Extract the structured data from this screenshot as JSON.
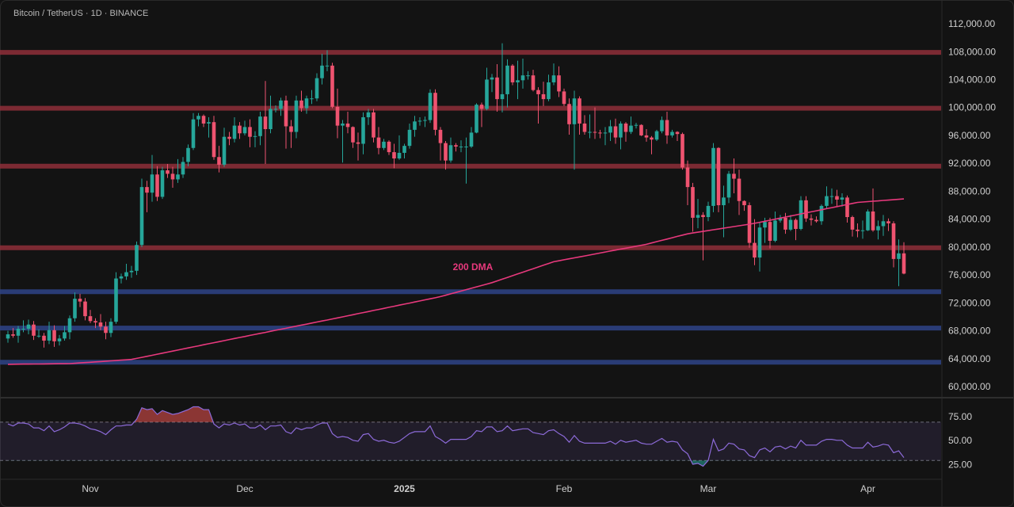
{
  "chart_data": {
    "type": "candlestick",
    "title": "Bitcoin / TetherUS · 1D · BINANCE",
    "categories": [
      null,
      null,
      null,
      null,
      null,
      null,
      null,
      null,
      null,
      null,
      null,
      null,
      null,
      null,
      null,
      null,
      "Nov",
      null,
      null,
      null,
      null,
      null,
      null,
      null,
      null,
      null,
      null,
      null,
      null,
      null,
      null,
      null,
      null,
      null,
      null,
      null,
      null,
      null,
      null,
      null,
      null,
      null,
      null,
      null,
      null,
      null,
      "Dec",
      null,
      null,
      null,
      null,
      null,
      null,
      null,
      null,
      null,
      null,
      null,
      null,
      null,
      null,
      null,
      null,
      null,
      null,
      null,
      null,
      null,
      null,
      null,
      null,
      null,
      null,
      null,
      null,
      null,
      null,
      "2025",
      null,
      null,
      null,
      null,
      null,
      null,
      null,
      null,
      null,
      null,
      null,
      null,
      null,
      null,
      null,
      null,
      null,
      null,
      null,
      null,
      null,
      null,
      null,
      null,
      null,
      null,
      null,
      null,
      null,
      null,
      "Feb",
      null,
      null,
      null,
      null,
      null,
      null,
      null,
      null,
      null,
      null,
      null,
      null,
      null,
      null,
      null,
      null,
      null,
      null,
      null,
      null,
      null,
      null,
      null,
      null,
      null,
      null,
      null,
      "Mar",
      null,
      null,
      null,
      null,
      null,
      null,
      null,
      null,
      null,
      null,
      null,
      null,
      null,
      null,
      null,
      null,
      null,
      null,
      null,
      null,
      null,
      null,
      null,
      null,
      null,
      null,
      null,
      null,
      null,
      null,
      "Apr",
      null,
      null,
      null,
      null,
      null,
      null,
      null
    ],
    "open": [
      67000,
      67600,
      67400,
      68400,
      68400,
      69000,
      67400,
      67400,
      66700,
      68200,
      66600,
      67000,
      67900,
      69900,
      72700,
      72300,
      70200,
      69500,
      69300,
      68700,
      67800,
      69400,
      75600,
      75900,
      76500,
      76700,
      80400,
      88700,
      87900,
      90500,
      87300,
      91100,
      90600,
      89800,
      90500,
      92300,
      94300,
      98400,
      98900,
      97800,
      98000,
      93000,
      91900,
      95900,
      95600,
      97500,
      96400,
      97300,
      95900,
      96000,
      98800,
      97000,
      99900,
      99900,
      101100,
      97400,
      96600,
      101100,
      100000,
      101400,
      101400,
      104300,
      106100,
      106100,
      100200,
      97500,
      97800,
      97300,
      95100,
      94900,
      98700,
      99400,
      95800,
      94300,
      95200,
      93700,
      92800,
      93600,
      94600,
      96900,
      98100,
      98200,
      98300,
      102200,
      96900,
      95000,
      92500,
      94700,
      94500,
      94500,
      94500,
      96500,
      100500,
      99900,
      104100,
      104400,
      101300,
      102000,
      106100,
      103700,
      104000,
      104700,
      104700,
      102600,
      102000,
      101300,
      103700,
      104700,
      102400,
      100600,
      97700,
      101400,
      97800,
      96600,
      96600,
      96500,
      96400,
      96500,
      97400,
      95800,
      97800,
      96600,
      97500,
      97600,
      96100,
      95800,
      95500,
      96700,
      98300,
      96100,
      96600,
      96300,
      91500,
      88700,
      84300,
      84700,
      84400,
      86000,
      94300,
      86100,
      87200,
      90600,
      89900,
      86700,
      86100,
      80700,
      78600,
      82900,
      83700,
      81000,
      83900,
      84300,
      82600,
      84000,
      82700,
      86800,
      84200,
      84000,
      83800,
      86000,
      87400,
      87400,
      86900,
      87200,
      84400,
      82600,
      82400,
      82500,
      85200,
      82500,
      83100,
      83800,
      83500,
      78400,
      79200
    ],
    "high": [
      68100,
      68500,
      68800,
      69600,
      69700,
      69500,
      68300,
      67800,
      69400,
      68900,
      67500,
      68800,
      70300,
      73600,
      73400,
      72800,
      71100,
      69900,
      70500,
      69400,
      69900,
      76500,
      76300,
      77700,
      77400,
      80900,
      89900,
      89600,
      93300,
      91700,
      91600,
      92000,
      91600,
      92700,
      93000,
      94800,
      99300,
      99300,
      99100,
      98700,
      98900,
      94600,
      97200,
      96600,
      98700,
      98000,
      98200,
      98400,
      96700,
      99500,
      103900,
      101800,
      100400,
      101500,
      101800,
      98300,
      101800,
      102500,
      101800,
      102600,
      105000,
      107800,
      108300,
      106500,
      102800,
      98300,
      99500,
      97400,
      96500,
      99400,
      99900,
      99900,
      97300,
      95600,
      95400,
      94900,
      96100,
      94900,
      97800,
      98900,
      98700,
      98800,
      102700,
      102700,
      97300,
      95300,
      95800,
      95000,
      95400,
      95800,
      97300,
      100700,
      100800,
      105800,
      104900,
      106300,
      109300,
      107000,
      106300,
      106800,
      107100,
      105300,
      105500,
      103000,
      103800,
      104800,
      106400,
      106000,
      102800,
      101400,
      102500,
      101700,
      99000,
      99100,
      100100,
      96900,
      97300,
      98300,
      98500,
      98100,
      98000,
      98800,
      97900,
      97700,
      97000,
      96000,
      96900,
      98800,
      99500,
      96900,
      96700,
      96500,
      92500,
      89300,
      87000,
      85100,
      86600,
      95000,
      94400,
      88900,
      91000,
      92800,
      91200,
      86800,
      86500,
      84100,
      83600,
      84300,
      84300,
      85200,
      84700,
      85000,
      84700,
      84200,
      87400,
      87400,
      84800,
      84500,
      86200,
      88800,
      88500,
      88300,
      87800,
      87500,
      84600,
      83500,
      83900,
      85500,
      88500,
      83900,
      84700,
      84200,
      83800,
      81200,
      80800
    ],
    "low": [
      66400,
      67100,
      66400,
      67900,
      67600,
      66800,
      67100,
      65700,
      66200,
      65800,
      66000,
      66700,
      66900,
      69400,
      71500,
      69600,
      69200,
      68500,
      68200,
      66900,
      67200,
      69100,
      74900,
      75400,
      75700,
      76100,
      80100,
      85100,
      86600,
      86700,
      87000,
      90000,
      88600,
      89300,
      90000,
      91700,
      94000,
      97400,
      97300,
      95800,
      92600,
      90800,
      91600,
      94700,
      95100,
      95600,
      96100,
      94400,
      94400,
      94700,
      92000,
      96400,
      99400,
      98900,
      94200,
      94300,
      95700,
      99500,
      99200,
      100600,
      101000,
      103400,
      105300,
      100000,
      95700,
      92200,
      96400,
      94300,
      92500,
      93400,
      97600,
      95100,
      93400,
      94000,
      93300,
      91400,
      92600,
      92800,
      94200,
      95900,
      97500,
      97300,
      97900,
      96100,
      92500,
      91200,
      92200,
      93800,
      93700,
      89200,
      94300,
      96400,
      97300,
      99700,
      102300,
      99500,
      99400,
      100100,
      103300,
      101300,
      102800,
      104100,
      102400,
      97800,
      100300,
      101000,
      103300,
      101600,
      100300,
      96200,
      91200,
      96200,
      96200,
      95700,
      95600,
      95700,
      94700,
      95300,
      94900,
      94100,
      95200,
      96300,
      97100,
      96000,
      95200,
      93400,
      95300,
      96400,
      94900,
      95800,
      95300,
      91200,
      86100,
      82300,
      82800,
      78200,
      83800,
      85100,
      85100,
      81500,
      86400,
      87800,
      84700,
      85300,
      80000,
      77500,
      76600,
      80700,
      79900,
      80800,
      83600,
      82000,
      82400,
      81100,
      82500,
      83700,
      83200,
      83600,
      83300,
      85600,
      86300,
      85900,
      85900,
      83600,
      81600,
      81500,
      81300,
      82400,
      82300,
      81200,
      81700,
      82400,
      77200,
      74500,
      76200
    ],
    "close": [
      67600,
      67400,
      68400,
      68400,
      69000,
      67400,
      67400,
      66700,
      68200,
      66600,
      67000,
      67900,
      69900,
      72700,
      72300,
      70200,
      69500,
      69300,
      68700,
      67800,
      69400,
      75600,
      75900,
      76500,
      76700,
      80400,
      88700,
      87900,
      90500,
      87300,
      91100,
      90600,
      89800,
      90500,
      92300,
      94300,
      98400,
      98900,
      97800,
      98000,
      93000,
      91900,
      95900,
      95600,
      97500,
      96400,
      97300,
      95900,
      96000,
      98800,
      97000,
      99900,
      99900,
      101100,
      97400,
      96600,
      101100,
      100000,
      101400,
      101400,
      104300,
      106100,
      106100,
      100200,
      97500,
      97800,
      97300,
      95100,
      94900,
      98700,
      99400,
      95800,
      94300,
      95200,
      93700,
      92800,
      93600,
      94600,
      96900,
      98100,
      98200,
      98300,
      102200,
      96900,
      95000,
      92500,
      94700,
      94500,
      94500,
      94500,
      96500,
      100500,
      99900,
      104100,
      104400,
      101300,
      102000,
      106100,
      103700,
      104000,
      104700,
      104700,
      102600,
      102000,
      101300,
      103700,
      104700,
      102400,
      100600,
      97700,
      101400,
      97800,
      96600,
      96600,
      96500,
      96400,
      96500,
      97400,
      95800,
      97800,
      96600,
      97500,
      97600,
      96100,
      95800,
      95500,
      96700,
      98300,
      96100,
      96600,
      96300,
      91500,
      88700,
      84300,
      84700,
      84400,
      86000,
      94300,
      86100,
      87200,
      90600,
      89900,
      86700,
      86100,
      80700,
      78600,
      82900,
      83700,
      81000,
      83900,
      84300,
      82600,
      84000,
      82700,
      86800,
      84200,
      84000,
      83800,
      86000,
      87400,
      87400,
      86900,
      87200,
      84400,
      82600,
      82400,
      82500,
      85200,
      82500,
      83100,
      83800,
      83500,
      78400,
      79200,
      76300
    ],
    "up_color": "#26a69a",
    "down_color": "#ef5370",
    "series": [
      {
        "name": "200 DMA",
        "color": "#e8397d",
        "values": [
          63300,
          63310,
          63320,
          63330,
          63340,
          63350,
          63350,
          63360,
          63370,
          63380,
          63390,
          63390,
          63400,
          63450,
          63500,
          63550,
          63600,
          63650,
          63700,
          63750,
          63800,
          63850,
          63900,
          63950,
          64000,
          64150,
          64300,
          64450,
          64600,
          64750,
          64900,
          65050,
          65200,
          65350,
          65500,
          65650,
          65800,
          65950,
          66100,
          66250,
          66400,
          66550,
          66700,
          66850,
          67000,
          67150,
          67290,
          67440,
          67590,
          67740,
          67880,
          68030,
          68180,
          68330,
          68470,
          68620,
          68770,
          68920,
          69060,
          69210,
          69360,
          69510,
          69650,
          69800,
          69950,
          70100,
          70260,
          70410,
          70560,
          70710,
          70860,
          71020,
          71170,
          71320,
          71470,
          71620,
          71780,
          71930,
          72080,
          72230,
          72380,
          72540,
          72690,
          72840,
          73000,
          73200,
          73400,
          73600,
          73800,
          74000,
          74200,
          74400,
          74600,
          74800,
          75000,
          75250,
          75500,
          75750,
          76000,
          76250,
          76500,
          76750,
          77000,
          77250,
          77500,
          77750,
          78000,
          78140,
          78280,
          78420,
          78560,
          78690,
          78830,
          78970,
          79110,
          79250,
          79390,
          79530,
          79670,
          79810,
          79940,
          80080,
          80220,
          80360,
          80500,
          80690,
          80880,
          81060,
          81250,
          81440,
          81630,
          81810,
          82000,
          82120,
          82230,
          82350,
          82460,
          82580,
          82690,
          82810,
          82920,
          83040,
          83150,
          83270,
          83380,
          83500,
          83650,
          83800,
          83950,
          84100,
          84250,
          84400,
          84550,
          84700,
          84850,
          85000,
          85150,
          85300,
          85450,
          85600,
          85750,
          85900,
          86050,
          86200,
          86350,
          86500,
          86560,
          86610,
          86670,
          86720,
          86780,
          86830,
          86890,
          86940,
          87000
        ]
      }
    ],
    "ylim": [
      58750,
      115500
    ],
    "yticks": [
      {
        "value": 112000,
        "label": "112,000.00"
      },
      {
        "value": 108000,
        "label": "108,000.00"
      },
      {
        "value": 104000,
        "label": "104,000.00"
      },
      {
        "value": 100000,
        "label": "100,000.00"
      },
      {
        "value": 96000,
        "label": "96,000.00"
      },
      {
        "value": 92000,
        "label": "92,000.00"
      },
      {
        "value": 88000,
        "label": "88,000.00"
      },
      {
        "value": 84000,
        "label": "84,000.00"
      },
      {
        "value": 80000,
        "label": "80,000.00"
      },
      {
        "value": 76000,
        "label": "76,000.00"
      },
      {
        "value": 72000,
        "label": "72,000.00"
      },
      {
        "value": 68000,
        "label": "68,000.00"
      },
      {
        "value": 64000,
        "label": "64,000.00"
      },
      {
        "value": 60000,
        "label": "60,000.00"
      }
    ],
    "grid": false,
    "levels": [
      {
        "value": 108000,
        "color": "#8f2f3a"
      },
      {
        "value": 100000,
        "color": "#8f2f3a"
      },
      {
        "value": 91700,
        "color": "#8f2f3a"
      },
      {
        "value": 80000,
        "color": "#8f2f3a"
      },
      {
        "value": 73700,
        "color": "#2f4488"
      },
      {
        "value": 68500,
        "color": "#2f4488"
      },
      {
        "value": 63600,
        "color": "#2f4488"
      }
    ],
    "lower_pane": {
      "type": "line",
      "color": "#8c6ad8",
      "values": [
        68,
        66,
        69,
        69,
        68,
        64,
        64,
        61,
        66,
        60,
        62,
        65,
        69,
        69,
        68,
        66,
        63,
        62,
        60,
        57,
        62,
        66,
        66,
        67,
        67,
        73,
        85,
        83,
        84,
        78,
        82,
        80,
        78,
        79,
        81,
        83,
        86,
        86,
        83,
        83,
        68,
        64,
        68,
        67,
        69,
        67,
        68,
        64,
        64,
        67,
        62,
        66,
        66,
        67,
        60,
        58,
        64,
        62,
        64,
        64,
        67,
        69,
        69,
        58,
        54,
        55,
        54,
        51,
        50,
        57,
        58,
        52,
        50,
        51,
        49,
        48,
        50,
        54,
        58,
        60,
        60,
        60,
        66,
        55,
        52,
        48,
        52,
        52,
        52,
        52,
        55,
        61,
        60,
        65,
        65,
        60,
        61,
        66,
        61,
        62,
        63,
        63,
        59,
        58,
        57,
        61,
        62,
        58,
        55,
        49,
        56,
        50,
        48,
        48,
        48,
        48,
        48,
        50,
        47,
        51,
        49,
        50,
        51,
        48,
        47,
        47,
        50,
        53,
        49,
        50,
        49,
        41,
        37,
        26,
        27,
        24,
        30,
        52,
        40,
        42,
        48,
        47,
        42,
        41,
        35,
        33,
        41,
        43,
        39,
        44,
        45,
        42,
        45,
        43,
        51,
        46,
        46,
        46,
        50,
        52,
        52,
        51,
        51,
        46,
        43,
        43,
        43,
        49,
        44,
        45,
        47,
        46,
        38,
        40,
        33
      ],
      "ylim": [
        12,
        93
      ],
      "yticks": [
        {
          "value": 75,
          "label": "75.00"
        },
        {
          "value": 50,
          "label": "50.00"
        },
        {
          "value": 25,
          "label": "25.00"
        }
      ],
      "bands": [
        30,
        70
      ],
      "band_fill": "#8c6ad8",
      "overbought_color": "#ef5350",
      "oversold_color": "#26a69a"
    }
  }
}
